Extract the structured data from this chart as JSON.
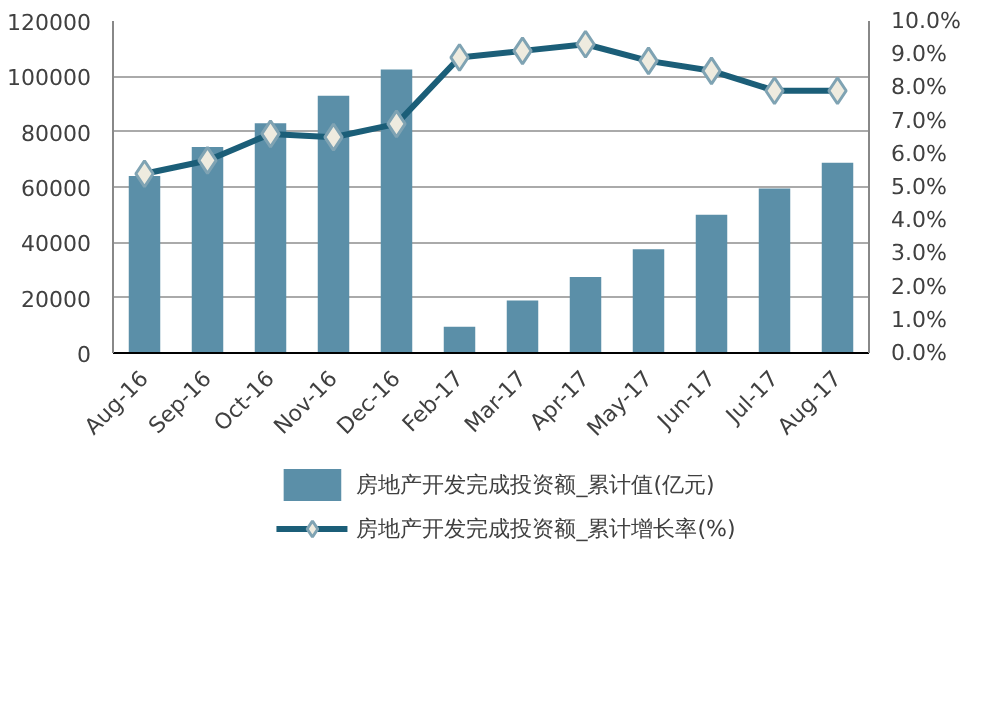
{
  "chart_data": {
    "type": "bar",
    "categories": [
      "Aug-16",
      "Sep-16",
      "Oct-16",
      "Nov-16",
      "Dec-16",
      "Feb-17",
      "Mar-17",
      "Apr-17",
      "May-17",
      "Jun-17",
      "Jul-17",
      "Aug-17"
    ],
    "series": [
      {
        "name": "房地产开发完成投资额_累计值(亿元)",
        "color": "#5b8fa8",
        "values": [
          64000,
          74500,
          83000,
          93000,
          102500,
          9500,
          19000,
          27500,
          37500,
          50000,
          59500,
          68800
        ]
      },
      {
        "name": "房地产开发完成投资额_累计增长率(%)",
        "type": "line",
        "axis": "y2",
        "color": "#1b5e78",
        "marker": "diamond",
        "values": [
          5.4,
          5.8,
          6.6,
          6.5,
          6.9,
          8.9,
          9.1,
          9.3,
          8.8,
          8.5,
          7.9,
          7.9
        ]
      }
    ],
    "ylim": [
      0,
      120000
    ],
    "yticks": [
      0,
      20000,
      40000,
      60000,
      80000,
      100000,
      120000
    ],
    "y2lim": [
      0,
      10
    ],
    "y2ticks": [
      {
        "value": 0,
        "label": "0.0%"
      },
      {
        "value": 1,
        "label": "1.0%"
      },
      {
        "value": 2,
        "label": "2.0%"
      },
      {
        "value": 3,
        "label": "3.0%"
      },
      {
        "value": 4,
        "label": "4.0%"
      },
      {
        "value": 5,
        "label": "5.0%"
      },
      {
        "value": 6,
        "label": "6.0%"
      },
      {
        "value": 7,
        "label": "7.0%"
      },
      {
        "value": 8,
        "label": "8.0%"
      },
      {
        "value": 9,
        "label": "9.0%"
      },
      {
        "value": 10,
        "label": "10.0%"
      }
    ],
    "grid": "y",
    "legend": "bottom"
  }
}
